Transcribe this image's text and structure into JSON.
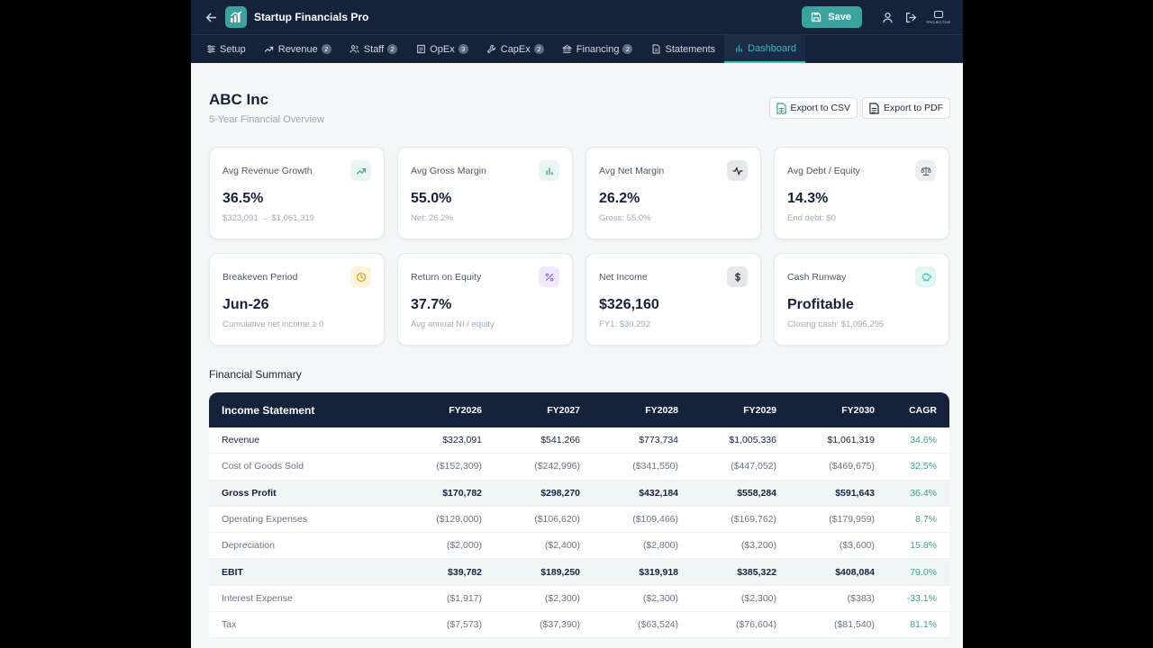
{
  "app": {
    "title": "Startup Financials Pro",
    "save_label": "Save",
    "brand_text": "PROJECTIVE"
  },
  "nav": {
    "tabs": [
      {
        "label": "Setup",
        "badge": "",
        "icon": "sliders-icon"
      },
      {
        "label": "Revenue",
        "badge": "2",
        "icon": "trending-up-icon"
      },
      {
        "label": "Staff",
        "badge": "2",
        "icon": "users-icon"
      },
      {
        "label": "OpEx",
        "badge": "3",
        "icon": "receipt-icon"
      },
      {
        "label": "CapEx",
        "badge": "2",
        "icon": "wrench-icon"
      },
      {
        "label": "Financing",
        "badge": "2",
        "icon": "bank-icon"
      },
      {
        "label": "Statements",
        "badge": "",
        "icon": "document-icon"
      },
      {
        "label": "Dashboard",
        "badge": "",
        "icon": "bar-chart-icon",
        "active": true
      }
    ]
  },
  "header": {
    "company": "ABC Inc",
    "subtitle": "5-Year Financial Overview",
    "export_csv": "Export to CSV",
    "export_pdf": "Export to PDF"
  },
  "kpis": [
    {
      "label": "Avg Revenue Growth",
      "value": "36.5%",
      "sub": "$323,091 → $1,061,319",
      "icon": "trending-up-icon",
      "icon_bg": "#e8f5f3",
      "icon_color": "#3a9e8f"
    },
    {
      "label": "Avg Gross Margin",
      "value": "55.0%",
      "sub": "Net: 26.2%",
      "icon": "bar-chart-icon",
      "icon_bg": "#e8f5f3",
      "icon_color": "#3a9e8f"
    },
    {
      "label": "Avg Net Margin",
      "value": "26.2%",
      "sub": "Gross: 55.0%",
      "icon": "activity-icon",
      "icon_bg": "#e5e7eb",
      "icon_color": "#1f2937"
    },
    {
      "label": "Avg Debt / Equity",
      "value": "14.3%",
      "sub": "End debt: $0",
      "icon": "scale-icon",
      "icon_bg": "#eceef1",
      "icon_color": "#4b5563"
    },
    {
      "label": "Breakeven Period",
      "value": "Jun-26",
      "sub": "Cumulative net income ≥ 0",
      "icon": "clock-icon",
      "icon_bg": "#fdf3d8",
      "icon_color": "#d99a1a"
    },
    {
      "label": "Return on Equity",
      "value": "37.7%",
      "sub": "Avg annual NI / equity",
      "icon": "percent-icon",
      "icon_bg": "#f1e9fb",
      "icon_color": "#8b5cf6"
    },
    {
      "label": "Net Income",
      "value": "$326,160",
      "sub": "FY1: $30,292",
      "icon": "dollar-icon",
      "icon_bg": "#e5e7eb",
      "icon_color": "#1f2937"
    },
    {
      "label": "Cash Runway",
      "value": "Profitable",
      "sub": "Closing cash: $1,095,295",
      "icon": "piggy-bank-icon",
      "icon_bg": "#e3f6f4",
      "icon_color": "#2fb5a8"
    }
  ],
  "summary": {
    "title": "Financial Summary",
    "headers": [
      "Income Statement",
      "FY2026",
      "FY2027",
      "FY2028",
      "FY2029",
      "FY2030",
      "CAGR"
    ],
    "rows": [
      {
        "style": "first",
        "cells": [
          "Revenue",
          "$323,091",
          "$541,266",
          "$773,734",
          "$1,005,336",
          "$1,061,319",
          "34.6%"
        ]
      },
      {
        "style": "",
        "cells": [
          "Cost of Goods Sold",
          "($152,309)",
          "($242,996)",
          "($341,550)",
          "($447,052)",
          "($469,675)",
          "32.5%"
        ]
      },
      {
        "style": "bold",
        "cells": [
          "Gross Profit",
          "$170,782",
          "$298,270",
          "$432,184",
          "$558,284",
          "$591,643",
          "36.4%"
        ]
      },
      {
        "style": "",
        "cells": [
          "Operating Expenses",
          "($129,000)",
          "($106,620)",
          "($109,466)",
          "($169,762)",
          "($179,959)",
          "8.7%"
        ]
      },
      {
        "style": "",
        "cells": [
          "Depreciation",
          "($2,000)",
          "($2,400)",
          "($2,800)",
          "($3,200)",
          "($3,600)",
          "15.8%"
        ]
      },
      {
        "style": "bold",
        "cells": [
          "EBIT",
          "$39,782",
          "$189,250",
          "$319,918",
          "$385,322",
          "$408,084",
          "79.0%"
        ]
      },
      {
        "style": "",
        "cells": [
          "Interest Expense",
          "($1,917)",
          "($2,300)",
          "($2,300)",
          "($2,300)",
          "($383)",
          "-33.1%"
        ]
      },
      {
        "style": "",
        "cells": [
          "Tax",
          "($7,573)",
          "($37,390)",
          "($63,524)",
          "($76,604)",
          "($81,540)",
          "81.1%"
        ]
      }
    ]
  }
}
